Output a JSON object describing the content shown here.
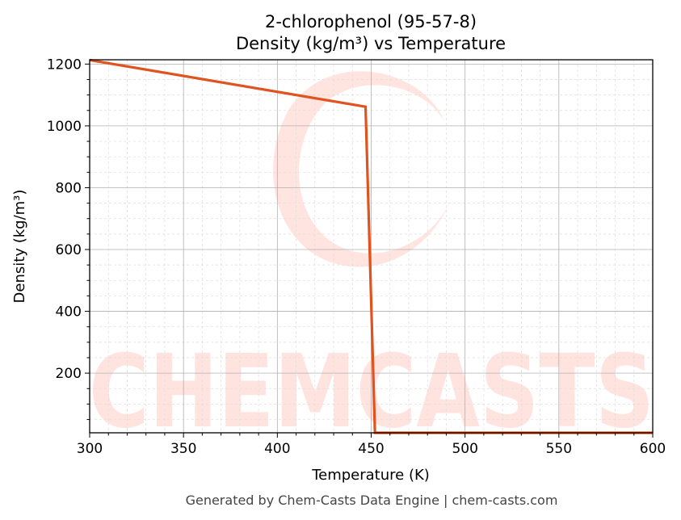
{
  "chart_data": {
    "type": "line",
    "title": "2-chlorophenol (95-57-8)",
    "subtitle": "Density (kg/m³) vs Temperature",
    "xlabel": "Temperature (K)",
    "ylabel": "Density (kg/m³)",
    "xlim": [
      300,
      600
    ],
    "ylim": [
      7,
      1214
    ],
    "xticks": [
      300,
      350,
      400,
      450,
      500,
      550,
      600
    ],
    "yticks": [
      200,
      400,
      600,
      800,
      1000,
      1200
    ],
    "grid": true,
    "series": [
      {
        "color": "#e0531f",
        "x": [
          300,
          447,
          452,
          600
        ],
        "y": [
          1213,
          1062,
          4,
          4
        ]
      }
    ],
    "footer": "Generated by Chem-Casts Data Engine | chem-casts.com",
    "watermark": "CHEMCASTS"
  }
}
